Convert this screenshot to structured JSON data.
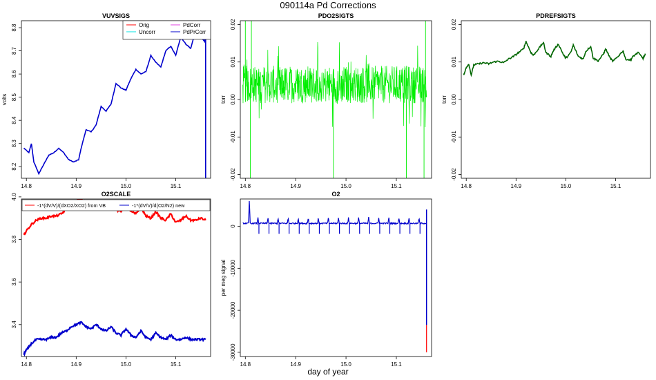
{
  "figure": {
    "title": "090114a   Pd Corrections",
    "xlabel": "day of year"
  },
  "chart_data": [
    {
      "type": "line",
      "title": "VUVSIGS",
      "ylabel": "volts",
      "xlim": [
        14.79,
        15.17
      ],
      "ylim": [
        8.15,
        8.83
      ],
      "xticks": [
        14.8,
        14.9,
        15.0,
        15.1
      ],
      "xtick_labels": [
        "14.8",
        "14.9",
        "15.0",
        "15.1"
      ],
      "yticks": [
        8.2,
        8.3,
        8.4,
        8.5,
        8.6,
        8.7,
        8.8
      ],
      "ytick_labels": [
        "8.2",
        "8.3",
        "8.4",
        "8.5",
        "8.6",
        "8.7",
        "8.8"
      ],
      "legend": [
        "Orig",
        "Uncorr",
        "PdCorr",
        "PdPrCorr"
      ],
      "legend_colors": [
        "#ff0000",
        "#00e5e5",
        "#e040e0",
        "#0000cc"
      ],
      "series": [
        {
          "name": "PdPrCorr",
          "color": "#0000cc",
          "x": [
            14.795,
            14.805,
            14.81,
            14.815,
            14.825,
            14.835,
            14.845,
            14.855,
            14.865,
            14.875,
            14.885,
            14.895,
            14.905,
            14.91,
            14.92,
            14.93,
            14.94,
            14.95,
            14.96,
            14.97,
            14.98,
            14.99,
            15.0,
            15.01,
            15.02,
            15.03,
            15.04,
            15.05,
            15.06,
            15.07,
            15.08,
            15.09,
            15.1,
            15.11,
            15.12,
            15.13,
            15.14,
            15.15,
            15.158,
            15.16,
            15.16
          ],
          "y": [
            8.28,
            8.26,
            8.3,
            8.22,
            8.17,
            8.21,
            8.25,
            8.26,
            8.28,
            8.26,
            8.23,
            8.22,
            8.23,
            8.28,
            8.36,
            8.35,
            8.38,
            8.46,
            8.44,
            8.47,
            8.56,
            8.54,
            8.53,
            8.58,
            8.62,
            8.6,
            8.61,
            8.68,
            8.65,
            8.63,
            8.7,
            8.72,
            8.68,
            8.76,
            8.73,
            8.71,
            8.79,
            8.76,
            8.74,
            8.8,
            8.15
          ]
        }
      ]
    },
    {
      "type": "line",
      "title": "PDO2SIGTS",
      "ylabel": "torr",
      "xlim": [
        14.79,
        15.17
      ],
      "ylim": [
        -0.021,
        0.021
      ],
      "xticks": [
        14.8,
        14.9,
        15.0,
        15.1
      ],
      "xtick_labels": [
        "14.8",
        "14.9",
        "15.0",
        "15.1"
      ],
      "yticks": [
        -0.02,
        -0.01,
        0.0,
        0.01,
        0.02
      ],
      "ytick_labels": [
        "-0.02",
        "-0.01",
        "0.00",
        "0.01",
        "0.02"
      ],
      "series": [
        {
          "name": "PDO2SIGTS",
          "color": "#00ee00",
          "center": 0.004,
          "band": 0.005,
          "spike": 0.021
        }
      ]
    },
    {
      "type": "line",
      "title": "PDREFSIGTS",
      "ylabel": "torr",
      "xlim": [
        14.79,
        15.17
      ],
      "ylim": [
        -0.021,
        0.021
      ],
      "xticks": [
        14.8,
        14.9,
        15.0,
        15.1
      ],
      "xtick_labels": [
        "14.8",
        "14.9",
        "15.0",
        "15.1"
      ],
      "yticks": [
        -0.02,
        -0.01,
        0.0,
        0.01,
        0.02
      ],
      "ytick_labels": [
        "-0.02",
        "-0.01",
        "0.00",
        "0.01",
        "0.02"
      ],
      "series": [
        {
          "name": "PDREFSIGTS",
          "color": "#006600",
          "x": [
            14.795,
            14.8,
            14.805,
            14.81,
            14.815,
            14.825,
            14.835,
            14.845,
            14.855,
            14.865,
            14.875,
            14.885,
            14.895,
            14.905,
            14.915,
            14.92,
            14.93,
            14.935,
            14.945,
            14.955,
            14.96,
            14.97,
            14.975,
            14.985,
            14.995,
            15.0,
            15.01,
            15.015,
            15.025,
            15.035,
            15.04,
            15.05,
            15.055,
            15.065,
            15.075,
            15.08,
            15.09,
            15.095,
            15.105,
            15.115,
            15.12,
            15.13,
            15.135,
            15.145,
            15.155,
            15.16
          ],
          "y": [
            0.0065,
            0.0085,
            0.0095,
            0.0065,
            0.0092,
            0.0095,
            0.0098,
            0.0095,
            0.01,
            0.0102,
            0.0098,
            0.0108,
            0.0115,
            0.0125,
            0.0135,
            0.0155,
            0.0125,
            0.0118,
            0.0135,
            0.0152,
            0.0125,
            0.0115,
            0.013,
            0.0148,
            0.012,
            0.011,
            0.0125,
            0.0145,
            0.0115,
            0.0108,
            0.0128,
            0.0142,
            0.011,
            0.0103,
            0.012,
            0.0135,
            0.0108,
            0.0102,
            0.0115,
            0.013,
            0.0108,
            0.0105,
            0.0115,
            0.0125,
            0.011,
            0.012
          ]
        }
      ]
    },
    {
      "type": "line",
      "title": "O2SCALE",
      "xlim": [
        14.79,
        15.17
      ],
      "ylim": [
        3.25,
        3.99
      ],
      "xticks": [
        14.8,
        14.9,
        15.0,
        15.1
      ],
      "xtick_labels": [
        "14.8",
        "14.9",
        "15.0",
        "15.1"
      ],
      "yticks": [
        3.4,
        3.6,
        3.8,
        4.0
      ],
      "ytick_labels": [
        "3.4",
        "3.6",
        "3.8",
        "4.0"
      ],
      "legend": [
        "-1*(dV/V)/(dXO2/XO2) from VB",
        "-1*(dV/V)/d(O2/N2) new"
      ],
      "legend_colors": [
        "#ff0000",
        "#0000cc"
      ],
      "series": [
        {
          "name": "-1*(dV/V)/(dXO2/XO2) from VB",
          "color": "#ff0000",
          "x": [
            14.795,
            14.8,
            14.81,
            14.82,
            14.83,
            14.84,
            14.85,
            14.86,
            14.87,
            14.88,
            14.89,
            14.9,
            14.91,
            14.92,
            14.93,
            14.94,
            14.95,
            14.96,
            14.97,
            14.98,
            14.99,
            15.0,
            15.01,
            15.02,
            15.03,
            15.04,
            15.05,
            15.06,
            15.07,
            15.08,
            15.09,
            15.1,
            15.11,
            15.12,
            15.13,
            15.14,
            15.15,
            15.16
          ],
          "y": [
            3.82,
            3.84,
            3.87,
            3.89,
            3.9,
            3.9,
            3.91,
            3.91,
            3.92,
            3.94,
            3.96,
            3.98,
            3.99,
            3.97,
            3.96,
            3.98,
            3.96,
            3.95,
            3.98,
            3.94,
            3.93,
            3.97,
            3.93,
            3.92,
            3.95,
            3.91,
            3.9,
            3.93,
            3.9,
            3.89,
            3.92,
            3.88,
            3.89,
            3.91,
            3.89,
            3.89,
            3.9,
            3.89
          ]
        },
        {
          "name": "-1*(dV/V)/d(O2/N2) new",
          "color": "#0000cc",
          "x": [
            14.795,
            14.8,
            14.81,
            14.82,
            14.83,
            14.84,
            14.85,
            14.86,
            14.87,
            14.88,
            14.89,
            14.9,
            14.91,
            14.92,
            14.93,
            14.94,
            14.95,
            14.96,
            14.97,
            14.98,
            14.99,
            15.0,
            15.01,
            15.02,
            15.03,
            15.04,
            15.05,
            15.06,
            15.07,
            15.08,
            15.09,
            15.1,
            15.11,
            15.12,
            15.13,
            15.14,
            15.15,
            15.16
          ],
          "y": [
            3.26,
            3.28,
            3.31,
            3.33,
            3.33,
            3.33,
            3.34,
            3.34,
            3.36,
            3.37,
            3.39,
            3.4,
            3.41,
            3.39,
            3.38,
            3.4,
            3.38,
            3.37,
            3.39,
            3.36,
            3.35,
            3.38,
            3.35,
            3.34,
            3.37,
            3.34,
            3.33,
            3.36,
            3.34,
            3.33,
            3.35,
            3.33,
            3.33,
            3.34,
            3.33,
            3.33,
            3.33,
            3.33
          ]
        }
      ]
    },
    {
      "type": "line",
      "title": "O2",
      "ylabel": "per meg signal",
      "xlim": [
        14.79,
        15.17
      ],
      "ylim": [
        -31000,
        6500
      ],
      "xticks": [
        14.8,
        14.9,
        15.0,
        15.1
      ],
      "xtick_labels": [
        "14.8",
        "14.9",
        "15.0",
        "15.1"
      ],
      "yticks": [
        -30000,
        -20000,
        -10000,
        0
      ],
      "ytick_labels": [
        "-30000",
        "-20000",
        "-10000",
        "0"
      ],
      "series": [
        {
          "name": "O2",
          "color": "#0000cc",
          "baseline": 700,
          "spike_days": [
            14.808,
            14.825,
            14.845,
            14.865,
            14.885,
            14.905,
            14.925,
            14.945,
            14.965,
            14.985,
            15.005,
            15.025,
            15.045,
            15.065,
            15.085,
            15.105,
            15.125,
            15.145
          ],
          "peak": 6200,
          "drop_to": -30000
        }
      ]
    }
  ]
}
